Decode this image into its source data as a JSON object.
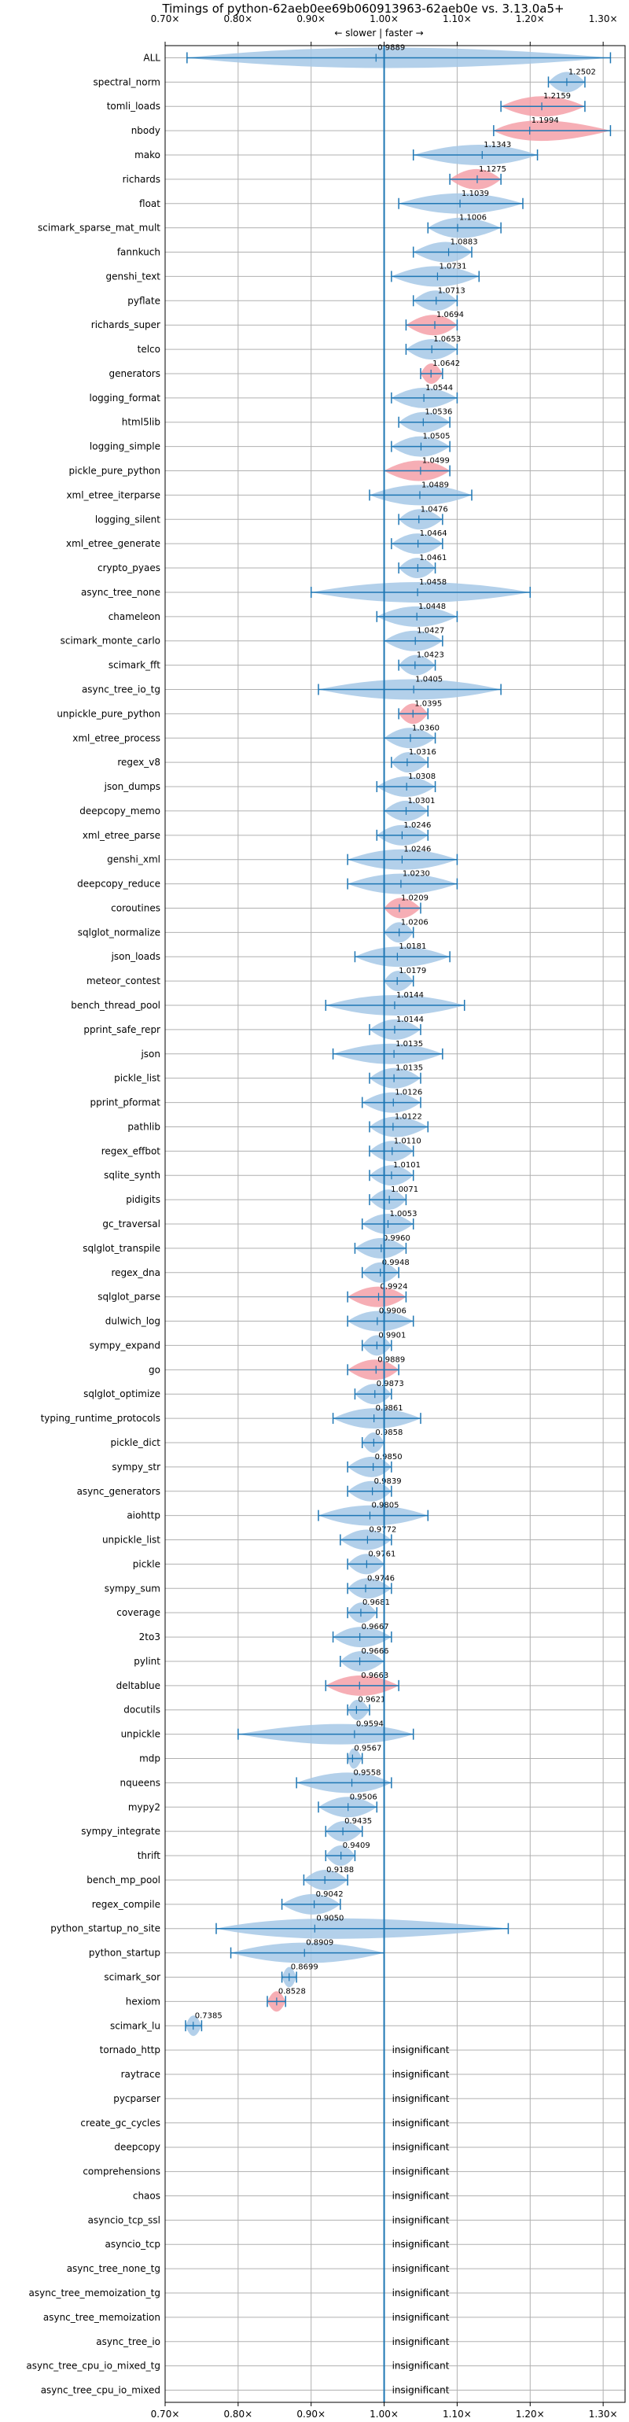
{
  "chart_data": {
    "type": "violin",
    "title": "Timings of python-62aeb0ee69b060913963-62aeb0e vs. 3.13.0a5+",
    "subtitle": "← slower | faster →",
    "xlim": [
      0.7,
      1.33
    ],
    "x_ticks": [
      0.7,
      0.8,
      0.9,
      1.0,
      1.1,
      1.2,
      1.3
    ],
    "x_tick_labels": [
      "0.70×",
      "0.80×",
      "0.90×",
      "1.00×",
      "1.10×",
      "1.20×",
      "1.30×"
    ],
    "reference_line": 1.0,
    "grid": true,
    "colors": {
      "faster": "#a6c8e6",
      "slower": "#f4a0a8",
      "errorbar": "#1f77b4",
      "refline": "#1f77b4",
      "grid": "#b0b0b0"
    },
    "insignificant_label": "insignificant",
    "benchmarks": [
      {
        "name": "ALL",
        "value": 0.9889,
        "label": "0.9889",
        "min": 0.73,
        "max": 1.31,
        "color": "faster"
      },
      {
        "name": "spectral_norm",
        "value": 1.2502,
        "label": "1.2502",
        "min": 1.225,
        "max": 1.275,
        "color": "faster"
      },
      {
        "name": "tomli_loads",
        "value": 1.2159,
        "label": "1.2159",
        "min": 1.16,
        "max": 1.275,
        "color": "slower"
      },
      {
        "name": "nbody",
        "value": 1.1994,
        "label": "1.1994",
        "min": 1.15,
        "max": 1.31,
        "color": "slower"
      },
      {
        "name": "mako",
        "value": 1.1343,
        "label": "1.1343",
        "min": 1.04,
        "max": 1.21,
        "color": "faster"
      },
      {
        "name": "richards",
        "value": 1.1275,
        "label": "1.1275",
        "min": 1.09,
        "max": 1.16,
        "color": "slower"
      },
      {
        "name": "float",
        "value": 1.1039,
        "label": "1.1039",
        "min": 1.02,
        "max": 1.19,
        "color": "faster"
      },
      {
        "name": "scimark_sparse_mat_mult",
        "value": 1.1006,
        "label": "1.1006",
        "min": 1.06,
        "max": 1.16,
        "color": "faster"
      },
      {
        "name": "fannkuch",
        "value": 1.0883,
        "label": "1.0883",
        "min": 1.04,
        "max": 1.12,
        "color": "faster"
      },
      {
        "name": "genshi_text",
        "value": 1.0731,
        "label": "1.0731",
        "min": 1.01,
        "max": 1.13,
        "color": "faster"
      },
      {
        "name": "pyflate",
        "value": 1.0713,
        "label": "1.0713",
        "min": 1.04,
        "max": 1.1,
        "color": "faster"
      },
      {
        "name": "richards_super",
        "value": 1.0694,
        "label": "1.0694",
        "min": 1.03,
        "max": 1.1,
        "color": "slower"
      },
      {
        "name": "telco",
        "value": 1.0653,
        "label": "1.0653",
        "min": 1.03,
        "max": 1.1,
        "color": "faster"
      },
      {
        "name": "generators",
        "value": 1.0642,
        "label": "1.0642",
        "min": 1.05,
        "max": 1.08,
        "color": "slower"
      },
      {
        "name": "logging_format",
        "value": 1.0544,
        "label": "1.0544",
        "min": 1.01,
        "max": 1.1,
        "color": "faster"
      },
      {
        "name": "html5lib",
        "value": 1.0536,
        "label": "1.0536",
        "min": 1.02,
        "max": 1.09,
        "color": "faster"
      },
      {
        "name": "logging_simple",
        "value": 1.0505,
        "label": "1.0505",
        "min": 1.01,
        "max": 1.09,
        "color": "faster"
      },
      {
        "name": "pickle_pure_python",
        "value": 1.0499,
        "label": "1.0499",
        "min": 1.0,
        "max": 1.09,
        "color": "slower"
      },
      {
        "name": "xml_etree_iterparse",
        "value": 1.0489,
        "label": "1.0489",
        "min": 0.98,
        "max": 1.12,
        "color": "faster"
      },
      {
        "name": "logging_silent",
        "value": 1.0476,
        "label": "1.0476",
        "min": 1.02,
        "max": 1.08,
        "color": "faster"
      },
      {
        "name": "xml_etree_generate",
        "value": 1.0464,
        "label": "1.0464",
        "min": 1.01,
        "max": 1.08,
        "color": "faster"
      },
      {
        "name": "crypto_pyaes",
        "value": 1.0461,
        "label": "1.0461",
        "min": 1.02,
        "max": 1.07,
        "color": "faster"
      },
      {
        "name": "async_tree_none",
        "value": 1.0458,
        "label": "1.0458",
        "min": 0.9,
        "max": 1.2,
        "color": "faster"
      },
      {
        "name": "chameleon",
        "value": 1.0448,
        "label": "1.0448",
        "min": 0.99,
        "max": 1.1,
        "color": "faster"
      },
      {
        "name": "scimark_monte_carlo",
        "value": 1.0427,
        "label": "1.0427",
        "min": 1.0,
        "max": 1.08,
        "color": "faster"
      },
      {
        "name": "scimark_fft",
        "value": 1.0423,
        "label": "1.0423",
        "min": 1.02,
        "max": 1.07,
        "color": "faster"
      },
      {
        "name": "async_tree_io_tg",
        "value": 1.0405,
        "label": "1.0405",
        "min": 0.91,
        "max": 1.16,
        "color": "faster"
      },
      {
        "name": "unpickle_pure_python",
        "value": 1.0395,
        "label": "1.0395",
        "min": 1.02,
        "max": 1.06,
        "color": "slower"
      },
      {
        "name": "xml_etree_process",
        "value": 1.036,
        "label": "1.0360",
        "min": 1.0,
        "max": 1.07,
        "color": "faster"
      },
      {
        "name": "regex_v8",
        "value": 1.0316,
        "label": "1.0316",
        "min": 1.01,
        "max": 1.06,
        "color": "faster"
      },
      {
        "name": "json_dumps",
        "value": 1.0308,
        "label": "1.0308",
        "min": 0.99,
        "max": 1.07,
        "color": "faster"
      },
      {
        "name": "deepcopy_memo",
        "value": 1.0301,
        "label": "1.0301",
        "min": 1.0,
        "max": 1.06,
        "color": "faster"
      },
      {
        "name": "xml_etree_parse",
        "value": 1.0246,
        "label": "1.0246",
        "min": 0.99,
        "max": 1.06,
        "color": "faster"
      },
      {
        "name": "genshi_xml",
        "value": 1.0246,
        "label": "1.0246",
        "min": 0.95,
        "max": 1.1,
        "color": "faster"
      },
      {
        "name": "deepcopy_reduce",
        "value": 1.023,
        "label": "1.0230",
        "min": 0.95,
        "max": 1.1,
        "color": "faster"
      },
      {
        "name": "coroutines",
        "value": 1.0209,
        "label": "1.0209",
        "min": 1.0,
        "max": 1.05,
        "color": "slower"
      },
      {
        "name": "sqlglot_normalize",
        "value": 1.0206,
        "label": "1.0206",
        "min": 1.0,
        "max": 1.04,
        "color": "faster"
      },
      {
        "name": "json_loads",
        "value": 1.0181,
        "label": "1.0181",
        "min": 0.96,
        "max": 1.09,
        "color": "faster"
      },
      {
        "name": "meteor_contest",
        "value": 1.0179,
        "label": "1.0179",
        "min": 1.0,
        "max": 1.04,
        "color": "faster"
      },
      {
        "name": "bench_thread_pool",
        "value": 1.0144,
        "label": "1.0144",
        "min": 0.92,
        "max": 1.11,
        "color": "faster"
      },
      {
        "name": "pprint_safe_repr",
        "value": 1.0144,
        "label": "1.0144",
        "min": 0.98,
        "max": 1.05,
        "color": "faster"
      },
      {
        "name": "json",
        "value": 1.0135,
        "label": "1.0135",
        "min": 0.93,
        "max": 1.08,
        "color": "faster"
      },
      {
        "name": "pickle_list",
        "value": 1.0135,
        "label": "1.0135",
        "min": 0.98,
        "max": 1.05,
        "color": "faster"
      },
      {
        "name": "pprint_pformat",
        "value": 1.0126,
        "label": "1.0126",
        "min": 0.97,
        "max": 1.05,
        "color": "faster"
      },
      {
        "name": "pathlib",
        "value": 1.0122,
        "label": "1.0122",
        "min": 0.98,
        "max": 1.06,
        "color": "faster"
      },
      {
        "name": "regex_effbot",
        "value": 1.011,
        "label": "1.0110",
        "min": 0.98,
        "max": 1.04,
        "color": "faster"
      },
      {
        "name": "sqlite_synth",
        "value": 1.0101,
        "label": "1.0101",
        "min": 0.98,
        "max": 1.04,
        "color": "faster"
      },
      {
        "name": "pidigits",
        "value": 1.0071,
        "label": "1.0071",
        "min": 0.98,
        "max": 1.03,
        "color": "faster"
      },
      {
        "name": "gc_traversal",
        "value": 1.0053,
        "label": "1.0053",
        "min": 0.97,
        "max": 1.04,
        "color": "faster"
      },
      {
        "name": "sqlglot_transpile",
        "value": 0.996,
        "label": "0.9960",
        "min": 0.96,
        "max": 1.03,
        "color": "faster"
      },
      {
        "name": "regex_dna",
        "value": 0.9948,
        "label": "0.9948",
        "min": 0.97,
        "max": 1.02,
        "color": "faster"
      },
      {
        "name": "sqlglot_parse",
        "value": 0.9924,
        "label": "0.9924",
        "min": 0.95,
        "max": 1.03,
        "color": "slower"
      },
      {
        "name": "dulwich_log",
        "value": 0.9906,
        "label": "0.9906",
        "min": 0.95,
        "max": 1.04,
        "color": "faster"
      },
      {
        "name": "sympy_expand",
        "value": 0.9901,
        "label": "0.9901",
        "min": 0.97,
        "max": 1.01,
        "color": "faster"
      },
      {
        "name": "go",
        "value": 0.9889,
        "label": "0.9889",
        "min": 0.95,
        "max": 1.02,
        "color": "slower"
      },
      {
        "name": "sqlglot_optimize",
        "value": 0.9873,
        "label": "0.9873",
        "min": 0.96,
        "max": 1.01,
        "color": "faster"
      },
      {
        "name": "typing_runtime_protocols",
        "value": 0.9861,
        "label": "0.9861",
        "min": 0.93,
        "max": 1.05,
        "color": "faster"
      },
      {
        "name": "pickle_dict",
        "value": 0.9858,
        "label": "0.9858",
        "min": 0.97,
        "max": 1.0,
        "color": "faster"
      },
      {
        "name": "sympy_str",
        "value": 0.985,
        "label": "0.9850",
        "min": 0.95,
        "max": 1.01,
        "color": "faster"
      },
      {
        "name": "async_generators",
        "value": 0.9839,
        "label": "0.9839",
        "min": 0.95,
        "max": 1.01,
        "color": "faster"
      },
      {
        "name": "aiohttp",
        "value": 0.9805,
        "label": "0.9805",
        "min": 0.91,
        "max": 1.06,
        "color": "faster"
      },
      {
        "name": "unpickle_list",
        "value": 0.9772,
        "label": "0.9772",
        "min": 0.94,
        "max": 1.01,
        "color": "faster"
      },
      {
        "name": "pickle",
        "value": 0.9761,
        "label": "0.9761",
        "min": 0.95,
        "max": 1.0,
        "color": "faster"
      },
      {
        "name": "sympy_sum",
        "value": 0.9746,
        "label": "0.9746",
        "min": 0.95,
        "max": 1.01,
        "color": "faster"
      },
      {
        "name": "coverage",
        "value": 0.9681,
        "label": "0.9681",
        "min": 0.95,
        "max": 0.99,
        "color": "faster"
      },
      {
        "name": "2to3",
        "value": 0.9667,
        "label": "0.9667",
        "min": 0.93,
        "max": 1.01,
        "color": "faster"
      },
      {
        "name": "pylint",
        "value": 0.9666,
        "label": "0.9666",
        "min": 0.94,
        "max": 1.0,
        "color": "faster"
      },
      {
        "name": "deltablue",
        "value": 0.9663,
        "label": "0.9663",
        "min": 0.92,
        "max": 1.02,
        "color": "slower"
      },
      {
        "name": "docutils",
        "value": 0.9621,
        "label": "0.9621",
        "min": 0.95,
        "max": 0.98,
        "color": "faster"
      },
      {
        "name": "unpickle",
        "value": 0.9594,
        "label": "0.9594",
        "min": 0.8,
        "max": 1.04,
        "color": "faster"
      },
      {
        "name": "mdp",
        "value": 0.9567,
        "label": "0.9567",
        "min": 0.95,
        "max": 0.97,
        "color": "faster"
      },
      {
        "name": "nqueens",
        "value": 0.9558,
        "label": "0.9558",
        "min": 0.88,
        "max": 1.01,
        "color": "faster"
      },
      {
        "name": "mypy2",
        "value": 0.9506,
        "label": "0.9506",
        "min": 0.91,
        "max": 0.99,
        "color": "faster"
      },
      {
        "name": "sympy_integrate",
        "value": 0.9435,
        "label": "0.9435",
        "min": 0.92,
        "max": 0.97,
        "color": "faster"
      },
      {
        "name": "thrift",
        "value": 0.9409,
        "label": "0.9409",
        "min": 0.92,
        "max": 0.96,
        "color": "faster"
      },
      {
        "name": "bench_mp_pool",
        "value": 0.9188,
        "label": "0.9188",
        "min": 0.89,
        "max": 0.95,
        "color": "faster"
      },
      {
        "name": "regex_compile",
        "value": 0.9042,
        "label": "0.9042",
        "min": 0.86,
        "max": 0.94,
        "color": "faster"
      },
      {
        "name": "python_startup_no_site",
        "value": 0.905,
        "label": "0.9050",
        "min": 0.77,
        "max": 1.17,
        "color": "faster"
      },
      {
        "name": "python_startup",
        "value": 0.8909,
        "label": "0.8909",
        "min": 0.79,
        "max": 1.0,
        "color": "faster"
      },
      {
        "name": "scimark_sor",
        "value": 0.8699,
        "label": "0.8699",
        "min": 0.86,
        "max": 0.88,
        "color": "faster"
      },
      {
        "name": "hexiom",
        "value": 0.8528,
        "label": "0.8528",
        "min": 0.84,
        "max": 0.865,
        "color": "slower"
      },
      {
        "name": "scimark_lu",
        "value": 0.7385,
        "label": "0.7385",
        "min": 0.728,
        "max": 0.75,
        "color": "faster"
      },
      {
        "name": "tornado_http",
        "insignificant": true
      },
      {
        "name": "raytrace",
        "insignificant": true
      },
      {
        "name": "pycparser",
        "insignificant": true
      },
      {
        "name": "create_gc_cycles",
        "insignificant": true
      },
      {
        "name": "deepcopy",
        "insignificant": true
      },
      {
        "name": "comprehensions",
        "insignificant": true
      },
      {
        "name": "chaos",
        "insignificant": true
      },
      {
        "name": "asyncio_tcp_ssl",
        "insignificant": true
      },
      {
        "name": "asyncio_tcp",
        "insignificant": true
      },
      {
        "name": "async_tree_none_tg",
        "insignificant": true
      },
      {
        "name": "async_tree_memoization_tg",
        "insignificant": true
      },
      {
        "name": "async_tree_memoization",
        "insignificant": true
      },
      {
        "name": "async_tree_io",
        "insignificant": true
      },
      {
        "name": "async_tree_cpu_io_mixed_tg",
        "insignificant": true
      },
      {
        "name": "async_tree_cpu_io_mixed",
        "insignificant": true
      }
    ]
  }
}
